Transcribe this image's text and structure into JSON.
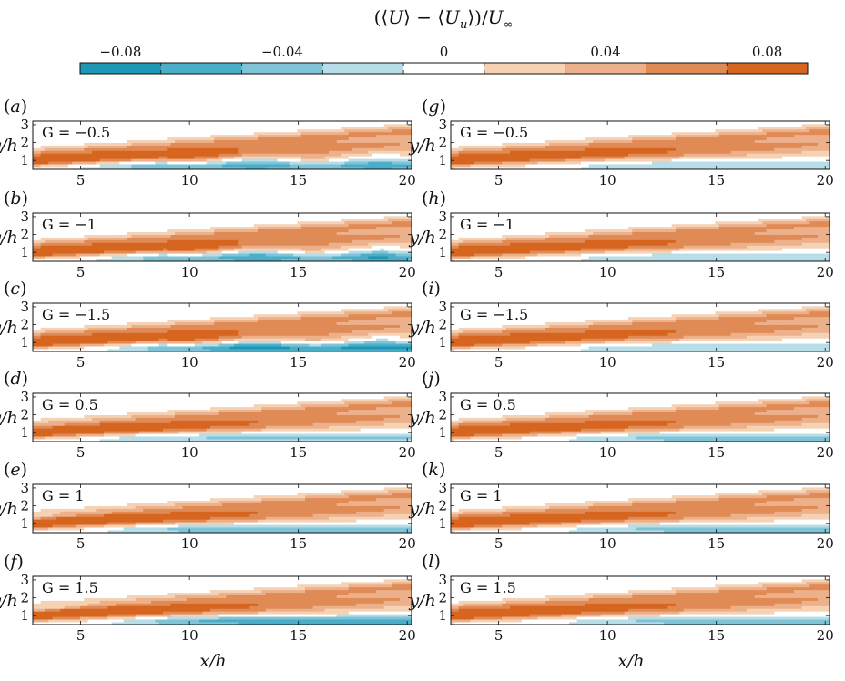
{
  "colorbar": {
    "title": "(⟨U⟩ − ⟨U_u⟩)/U_∞",
    "title_parts": [
      "(⟨",
      "U",
      "⟩ − ⟨",
      "U",
      "u",
      "⟩)/",
      "U",
      "∞"
    ],
    "ticks": [
      {
        "value": -0.08,
        "label": "−0.08"
      },
      {
        "value": -0.04,
        "label": "−0.04"
      },
      {
        "value": 0,
        "label": "0"
      },
      {
        "value": 0.04,
        "label": "0.04"
      },
      {
        "value": 0.08,
        "label": "0.08"
      }
    ],
    "levels": [
      -0.09,
      -0.07,
      -0.05,
      -0.03,
      -0.01,
      0.01,
      0.03,
      0.05,
      0.07,
      0.09
    ],
    "colors": [
      "#1d97b5",
      "#4aaec8",
      "#7ec3d6",
      "#b7dde8",
      "#ffffff",
      "#f6d2b5",
      "#ecb08a",
      "#e08a55",
      "#d6651f"
    ]
  },
  "axes": {
    "xlabel": "x/h",
    "ylabel": "y/h",
    "xlim": [
      2.8,
      20.2
    ],
    "ylim": [
      0.5,
      3.2
    ],
    "xticks": [
      "5",
      "10",
      "15",
      "20"
    ],
    "yticks": [
      "1",
      "2",
      "3"
    ]
  },
  "chart_data": [
    {
      "type": "heatmap",
      "panel": "(a)",
      "tag_letter": "a",
      "label": "G = −0.5",
      "G": -0.5
    },
    {
      "type": "heatmap",
      "panel": "(b)",
      "tag_letter": "b",
      "label": "G = −1",
      "G": -1
    },
    {
      "type": "heatmap",
      "panel": "(c)",
      "tag_letter": "c",
      "label": "G = −1.5",
      "G": -1.5
    },
    {
      "type": "heatmap",
      "panel": "(d)",
      "tag_letter": "d",
      "label": "G = 0.5",
      "G": 0.5
    },
    {
      "type": "heatmap",
      "panel": "(e)",
      "tag_letter": "e",
      "label": "G = 1",
      "G": 1
    },
    {
      "type": "heatmap",
      "panel": "(f)",
      "tag_letter": "f",
      "label": "G = 1.5",
      "G": 1.5
    },
    {
      "type": "heatmap",
      "panel": "(g)",
      "tag_letter": "g",
      "label": "G = −0.5",
      "G": -0.5
    },
    {
      "type": "heatmap",
      "panel": "(h)",
      "tag_letter": "h",
      "label": "G = −1",
      "G": -1
    },
    {
      "type": "heatmap",
      "panel": "(i)",
      "tag_letter": "i",
      "label": "G = −1.5",
      "G": -1.5
    },
    {
      "type": "heatmap",
      "panel": "(j)",
      "tag_letter": "j",
      "label": "G = 0.5",
      "G": 0.5
    },
    {
      "type": "heatmap",
      "panel": "(k)",
      "tag_letter": "k",
      "label": "G = 1",
      "G": 1
    },
    {
      "type": "heatmap",
      "panel": "(l)",
      "tag_letter": "l",
      "label": "G = 1.5",
      "G": 1.5
    }
  ]
}
